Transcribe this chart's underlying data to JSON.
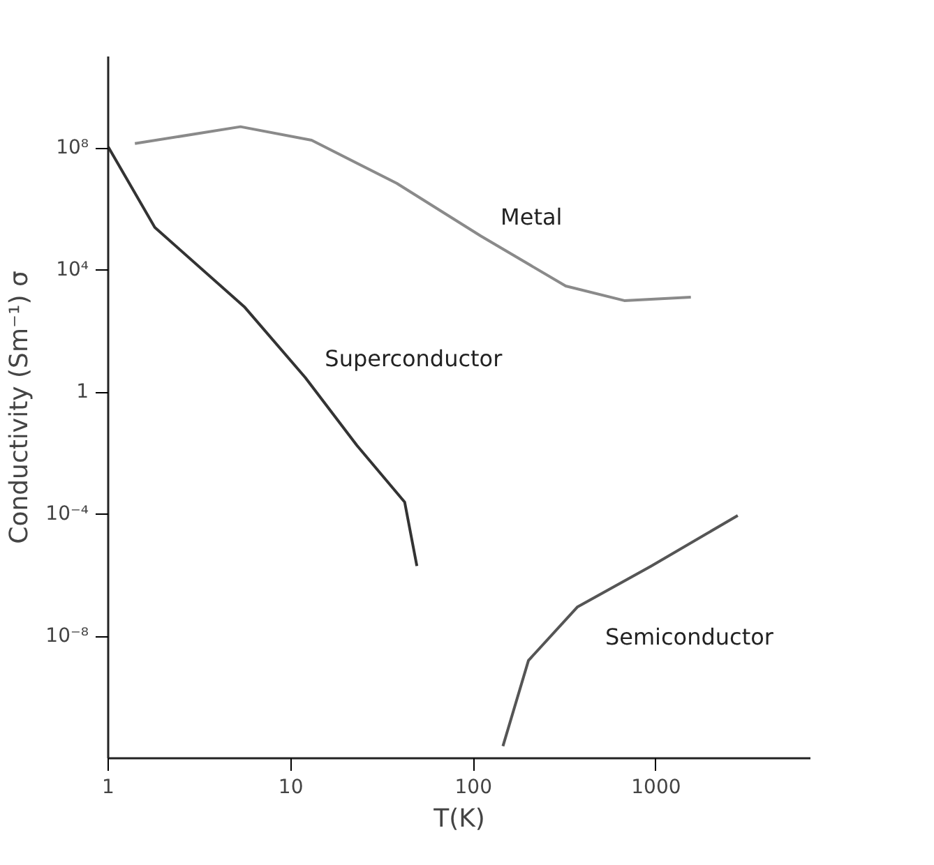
{
  "chart_data": {
    "type": "line",
    "xlabel": "T(K)",
    "ylabel": "Conductivity (Sm⁻¹) σ",
    "log": "xy",
    "grid": false,
    "legend": false,
    "xlim": [
      1,
      7000
    ],
    "ylim": [
      1e-12,
      100000000000.0
    ],
    "xticks": [
      1,
      10,
      100,
      1000
    ],
    "yticks": [
      {
        "value": 1e-08,
        "label": "10⁻⁸"
      },
      {
        "value": 0.0001,
        "label": "10⁻⁴"
      },
      1,
      {
        "value": 10000,
        "label": "10⁴"
      },
      {
        "value": 100000000,
        "label": "10⁸"
      }
    ],
    "series": [
      {
        "name": "Metal",
        "color": "#8a8a8a",
        "x": [
          1.4,
          5.3,
          13,
          38,
          110,
          320,
          670,
          1550
        ],
        "values": [
          140000000,
          500000000,
          180000000,
          7000000,
          130000,
          3000,
          1000,
          1300
        ]
      },
      {
        "name": "Superconductor",
        "color": "#333333",
        "x": [
          1.0,
          1.8,
          5.6,
          12,
          23,
          42,
          49
        ],
        "values": [
          110000000,
          250000,
          600,
          3,
          0.018,
          0.00025,
          2e-06
        ]
      },
      {
        "name": "Semiconductor",
        "color": "#555555",
        "x": [
          145,
          200,
          370,
          940,
          2800
        ],
        "values": [
          2.5e-12,
          1.6e-09,
          9e-08,
          2e-06,
          9e-05
        ]
      }
    ]
  }
}
